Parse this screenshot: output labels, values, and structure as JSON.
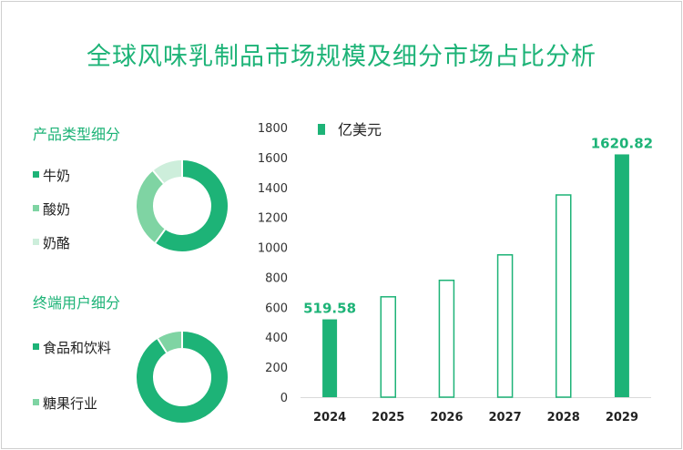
{
  "title": "全球风味乳制品市场规模及细分市场占比分析",
  "colors": {
    "accent": "#1db377",
    "mid": "#7fd4a3",
    "light": "#cdeedb"
  },
  "product_section": {
    "title": "产品类型细分",
    "items": [
      {
        "label": "牛奶",
        "share": 0.6,
        "color": "#1db377"
      },
      {
        "label": "酸奶",
        "share": 0.29,
        "color": "#7fd4a3"
      },
      {
        "label": "奶酪",
        "share": 0.11,
        "color": "#cdeedb"
      }
    ]
  },
  "user_section": {
    "title": "终端用户细分",
    "items": [
      {
        "label": "食品和饮料",
        "share": 0.91,
        "color": "#1db377"
      },
      {
        "label": "糖果行业",
        "share": 0.09,
        "color": "#7fd4a3"
      }
    ]
  },
  "chart_data": {
    "type": "bar",
    "categories": [
      "2024",
      "2025",
      "2026",
      "2027",
      "2028",
      "2029"
    ],
    "series": [
      {
        "name": "亿美元",
        "values": [
          519.58,
          670,
          780,
          950,
          1350,
          1620.82
        ]
      }
    ],
    "data_labels": {
      "2024": "519.58",
      "2029": "1620.82"
    },
    "filled_bars": [
      "2024",
      "2029"
    ],
    "ylim": [
      0,
      1800
    ],
    "yticks": [
      "0",
      "200",
      "400",
      "600",
      "800",
      "1000",
      "1200",
      "1400",
      "1600",
      "1800"
    ],
    "legend_position": "top-left"
  }
}
